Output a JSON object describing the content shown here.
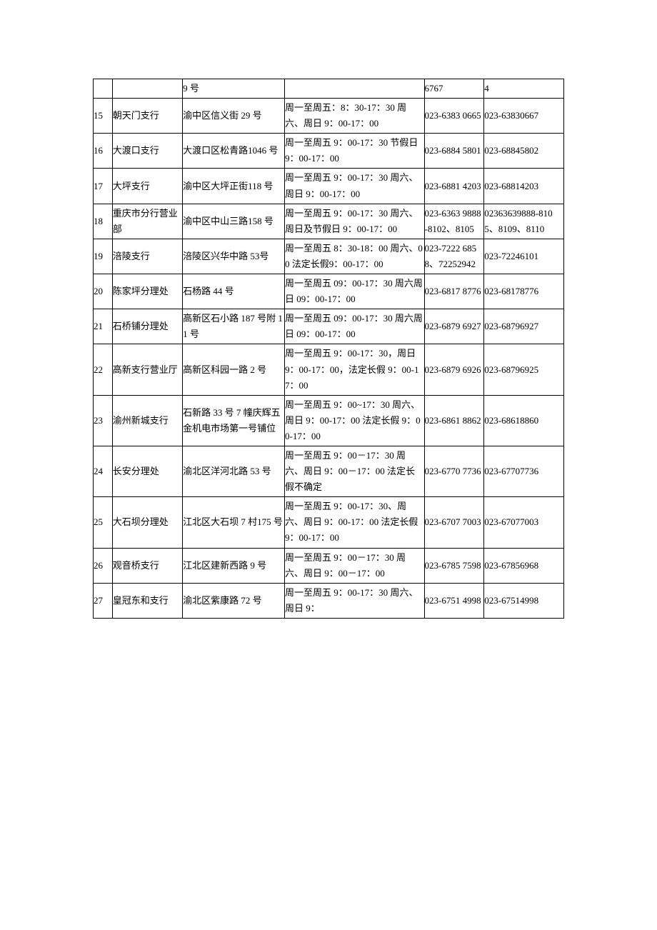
{
  "rows": [
    {
      "num": "",
      "name": "",
      "addr": "9 号",
      "hours": "",
      "phone1": "6767",
      "phone2": "4"
    },
    {
      "num": "15",
      "name": "朝天门支行",
      "addr": "渝中区信义街 29 号",
      "hours": "周一至周五：8：30-17：30 周六、周日 9：00-17：00",
      "phone1": "023-6383 0665",
      "phone2": "023-63830667"
    },
    {
      "num": "16",
      "name": "大渡口支行",
      "addr": "大渡口区松青路1046 号",
      "hours": "周一至周五 9：00-17：30 节假日 9：00-17：00",
      "phone1": "023-6884 5801",
      "phone2": "023-68845802"
    },
    {
      "num": "17",
      "name": "大坪支行",
      "addr": "渝中区大坪正街118 号",
      "hours": "周一至周五 9：00-17：30    周六、周日 9：00-17：00",
      "phone1": "023-6881 4203",
      "phone2": "023-68814203"
    },
    {
      "num": "18",
      "name": "重庆市分行营业部",
      "addr": "渝中区中山三路158 号",
      "hours": "周一至周五 9：00-17：30 周六、周日及节假日 9：00-17：00",
      "phone1": "023-6363 9888-8102、8105",
      "phone2": "02363639888-8105、8109、8110"
    },
    {
      "num": "19",
      "name": "涪陵支行",
      "addr": "涪陵区兴华中路 53号",
      "hours": "周一至周五 8：30-18：00 周六、00 法定长假9：00-17：00",
      "phone1": "023-7222 6858、72252942",
      "phone2": "023-72246101"
    },
    {
      "num": "20",
      "name": "陈家坪分理处",
      "addr": "石杨路 44 号",
      "hours": "周一至周五 09：00-17：30    周六周日 09：00-17：00",
      "phone1": "023-6817 8776",
      "phone2": "023-68178776"
    },
    {
      "num": "21",
      "name": "石桥铺分理处",
      "addr": "高新区石小路 187 号附 11 号",
      "hours": "周一至周五 09：00-17：30    周六周日 09：00-17：00",
      "phone1": "023-6879 6927",
      "phone2": "023-68796927"
    },
    {
      "num": "22",
      "name": "高新支行营业厅",
      "addr": "高新区科园一路 2 号",
      "hours": "周一至周五 9：00-17：30，周日 9：00-17：00，法定长假 9：00-17：00",
      "phone1": "023-6879 6926",
      "phone2": "023-68796925"
    },
    {
      "num": "23",
      "name": "渝州新城支行",
      "addr": "石新路 33 号 7 幢庆辉五金机电市场第一号铺位",
      "hours": "周一至周五 9：00~17：30 周六、周日 9：00-17：00 法定长假 9：00-17：00",
      "phone1": "023-6861 8862",
      "phone2": "023-68618860"
    },
    {
      "num": "24",
      "name": "长安分理处",
      "addr": "渝北区洋河北路 53 号",
      "hours": "周一至周五 9：00－17：30 周六、周日 9：00－17：00 法定长假不确定",
      "phone1": "023-6770 7736",
      "phone2": "023-67707736"
    },
    {
      "num": "25",
      "name": "大石坝分理处",
      "addr": "江北区大石坝 7 村175 号",
      "hours": "周一至周五 9：00-17：30、周六、周日 9：00-17：00 法定长假 9：00-17：00",
      "phone1": "023-6707 7003",
      "phone2": "023-67077003"
    },
    {
      "num": "26",
      "name": "观音桥支行",
      "addr": "江北区建新西路 9 号",
      "hours": "周一至周五 9：00－17：30 周六、周日 9：00－17：00",
      "phone1": "023-6785 7598",
      "phone2": "023-67856968"
    },
    {
      "num": "27",
      "name": "皇冠东和支行",
      "addr": "渝北区紫康路 72 号",
      "hours": "周一至周五 9：00-17：30 周六、周日 9：",
      "phone1": "023-6751 4998",
      "phone2": "023-67514998"
    }
  ]
}
